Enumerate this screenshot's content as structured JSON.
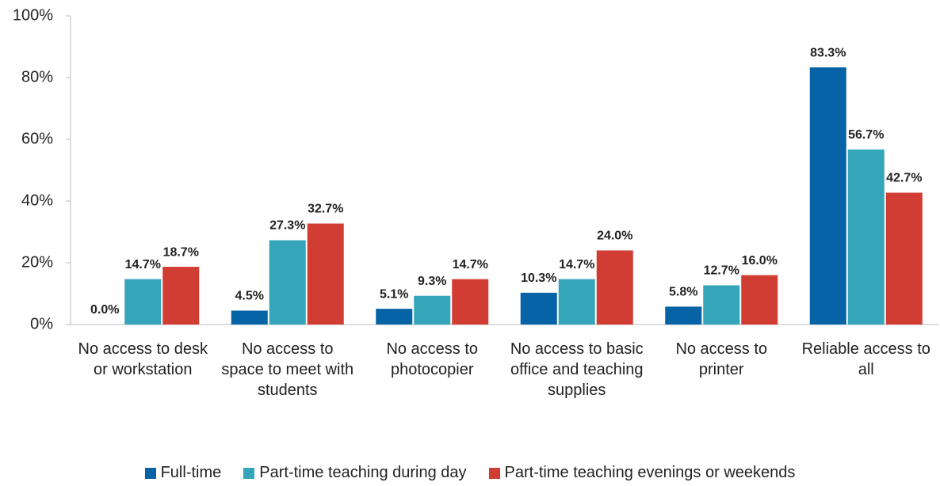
{
  "chart_data": {
    "type": "bar",
    "categories": [
      "No access to desk or workstation",
      "No access to space to meet with students",
      "No access to photocopier",
      "No access to basic office and teaching supplies",
      "No access to printer",
      "Reliable access to all"
    ],
    "series": [
      {
        "name": "Full-time",
        "color": "#0563a6",
        "values": [
          0.0,
          4.5,
          5.1,
          10.3,
          5.8,
          83.3
        ],
        "value_labels": [
          "0.0%",
          "4.5%",
          "5.1%",
          "10.3%",
          "5.8%",
          "83.3%"
        ]
      },
      {
        "name": "Part-time teaching during day",
        "color": "#35a5b9",
        "values": [
          14.7,
          27.3,
          9.3,
          14.7,
          12.7,
          56.7
        ],
        "value_labels": [
          "14.7%",
          "27.3%",
          "9.3%",
          "14.7%",
          "12.7%",
          "56.7%"
        ]
      },
      {
        "name": "Part-time teaching evenings or weekends",
        "color": "#d13c33",
        "values": [
          18.7,
          32.7,
          14.7,
          24.0,
          16.0,
          42.7
        ],
        "value_labels": [
          "18.7%",
          "32.7%",
          "14.7%",
          "24.0%",
          "16.0%",
          "42.7%"
        ]
      }
    ],
    "ylim": [
      0,
      100
    ],
    "yticks": [
      {
        "value": 0,
        "label": "0%"
      },
      {
        "value": 20,
        "label": "20%"
      },
      {
        "value": 40,
        "label": "40%"
      },
      {
        "value": 60,
        "label": "60%"
      },
      {
        "value": 80,
        "label": "80%"
      },
      {
        "value": 100,
        "label": "100%"
      }
    ],
    "grid": false,
    "legend": "bottom"
  }
}
